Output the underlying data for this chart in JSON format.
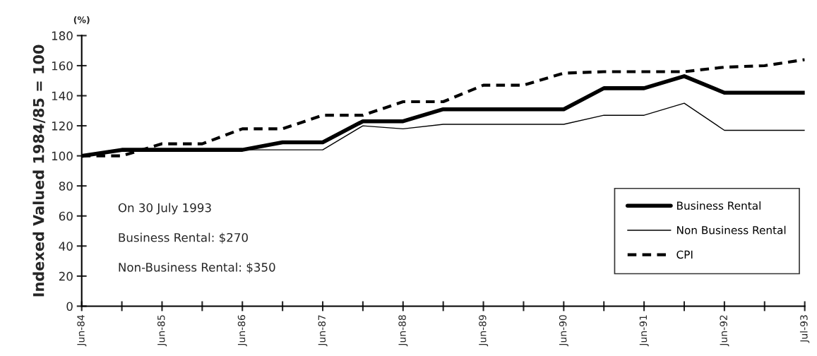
{
  "chart_data": {
    "type": "line",
    "ylabel": "Indexed Valued 1984/85 = 100",
    "categories": [
      "Jun-84",
      null,
      "Jun-85",
      null,
      "Jun-86",
      null,
      "Jun-87",
      null,
      "Jun-88",
      null,
      "Jun-89",
      null,
      "Jun-90",
      null,
      "Jun-91",
      null,
      "Jun-92",
      null,
      "Jul-93"
    ],
    "series": [
      {
        "name": "Business Rental",
        "color": "#000000",
        "line_style": "solid",
        "values": [
          100,
          104,
          104,
          104,
          104,
          109,
          109,
          123,
          123,
          131,
          131,
          131,
          131,
          145,
          145,
          153,
          142,
          142,
          142
        ]
      },
      {
        "name": "Non Business Rental",
        "color": "#000000",
        "line_style": "solid",
        "values": [
          100,
          104,
          104,
          104,
          104,
          104,
          104,
          120,
          118,
          121,
          121,
          121,
          121,
          127,
          127,
          135,
          117,
          117,
          117
        ]
      },
      {
        "name": "CPI",
        "color": "#000000",
        "line_style": "dashed",
        "values": [
          100,
          100,
          108,
          108,
          118,
          118,
          127,
          127,
          136,
          136,
          147,
          147,
          155,
          156,
          156,
          156,
          159,
          160,
          164
        ]
      }
    ],
    "ylim": [
      0,
      180
    ],
    "yticks": [
      0,
      20,
      40,
      60,
      80,
      100,
      120,
      140,
      160,
      180
    ],
    "annotations": [
      "(%)",
      "On 30 July 1993",
      "Business Rental: $270",
      "Non-Business Rental: $350"
    ],
    "legend": "bottom right",
    "grid": false,
    "marker": "none"
  }
}
